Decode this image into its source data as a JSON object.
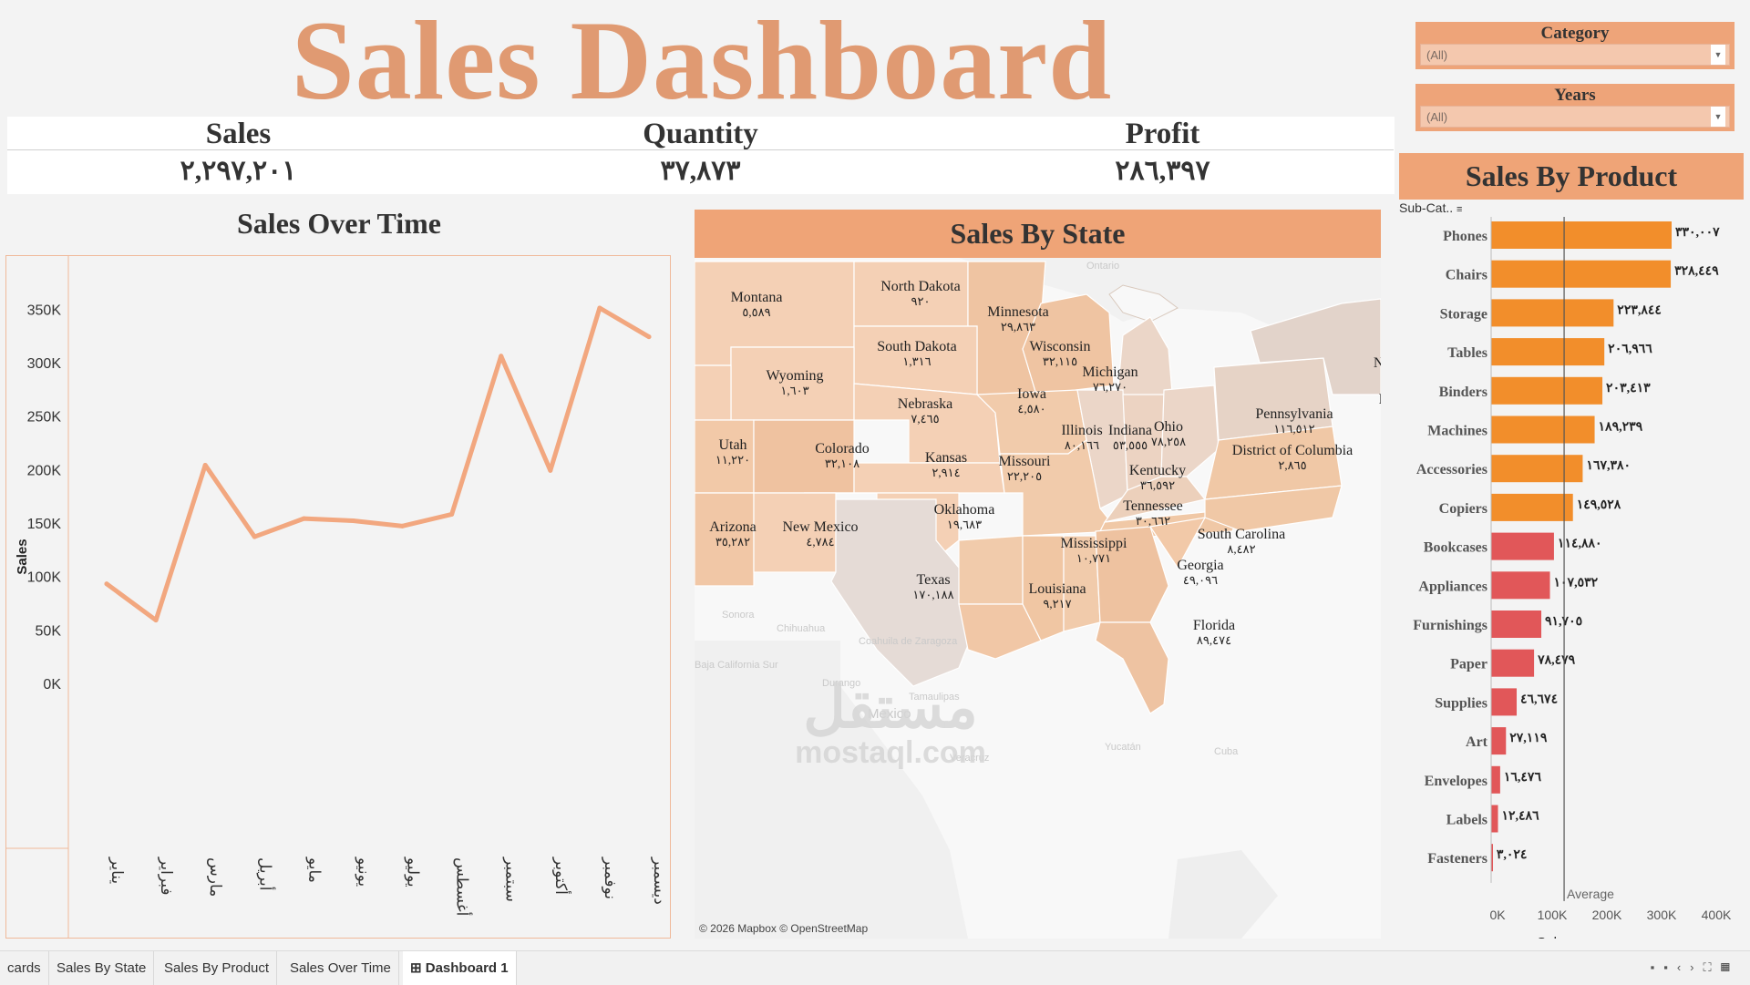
{
  "title": "Sales Dashboard",
  "kpis": [
    {
      "label": "Sales",
      "value": "٢,٢٩٧,٢٠١"
    },
    {
      "label": "Quantity",
      "value": "٣٧,٨٧٣"
    },
    {
      "label": "Profit",
      "value": "٢٨٦,٣٩٧"
    }
  ],
  "filters": {
    "category": {
      "label": "Category",
      "value": "(All)"
    },
    "years": {
      "label": "Years",
      "value": "(All)"
    }
  },
  "sales_over_time": {
    "title": "Sales Over Time",
    "ylabel": "Sales"
  },
  "sales_by_state": {
    "title": "Sales By State",
    "attribution": "© 2026 Mapbox © OpenStreetMap",
    "states": [
      {
        "name": "Montana",
        "value": "٥,٥٨٩"
      },
      {
        "name": "North Dakota",
        "value": "٩٢٠"
      },
      {
        "name": "Minnesota",
        "value": "٢٩,٨٦٣"
      },
      {
        "name": "South Dakota",
        "value": "١,٣١٦"
      },
      {
        "name": "Wyoming",
        "value": "١,٦٠٣"
      },
      {
        "name": "Wisconsin",
        "value": "٣٢,١١٥"
      },
      {
        "name": "Michigan",
        "value": "٧٦,٢٧٠"
      },
      {
        "name": "Nebraska",
        "value": "٧,٤٦٥"
      },
      {
        "name": "Iowa",
        "value": "٤,٥٨٠"
      },
      {
        "name": "Utah",
        "value": "١١,٢٢٠"
      },
      {
        "name": "Colorado",
        "value": "٣٢,١٠٨"
      },
      {
        "name": "Kansas",
        "value": "٢,٩١٤"
      },
      {
        "name": "Illinois",
        "value": "٨٠,١٦٦"
      },
      {
        "name": "Indiana",
        "value": "٥٣,٥٥٥"
      },
      {
        "name": "Ohio",
        "value": "٧٨,٢٥٨"
      },
      {
        "name": "Pennsylvania",
        "value": "١١٦,٥١٢"
      },
      {
        "name": "District of Columbia",
        "value": "٢,٨٦٥"
      },
      {
        "name": "Missouri",
        "value": "٢٢,٢٠٥"
      },
      {
        "name": "Kentucky",
        "value": "٣٦,٥٩٢"
      },
      {
        "name": "Oklahoma",
        "value": "١٩,٦٨٣"
      },
      {
        "name": "Tennessee",
        "value": "٣٠,٦٦٢"
      },
      {
        "name": "Arizona",
        "value": "٣٥,٢٨٢"
      },
      {
        "name": "New Mexico",
        "value": "٤,٧٨٤"
      },
      {
        "name": "South Carolina",
        "value": "٨,٤٨٢"
      },
      {
        "name": "Mississippi",
        "value": "١٠,٧٧١"
      },
      {
        "name": "Georgia",
        "value": "٤٩,٠٩٦"
      },
      {
        "name": "Texas",
        "value": "١٧٠,١٨٨"
      },
      {
        "name": "Louisiana",
        "value": "٩,٢١٧"
      },
      {
        "name": "Florida",
        "value": "٨٩,٤٧٤"
      },
      {
        "name": "New",
        "value": ""
      },
      {
        "name": "Rh",
        "value": ""
      }
    ],
    "background_labels": [
      "Ontario",
      "Sonora",
      "Chihuahua",
      "Coahuila de Zaragoza",
      "Baja California Sur",
      "Durango",
      "Tamaulipas",
      "Mexico",
      "Yucatán",
      "Cuba",
      "Veracruz"
    ]
  },
  "sales_by_product": {
    "title": "Sales By Product",
    "sub_label": "Sub-Cat..",
    "avg_label": "Average",
    "xlabel": "Sales"
  },
  "watermark": {
    "ar": "مستقل",
    "en": "mostaql.com"
  },
  "tabs": [
    "cards",
    "Sales By State",
    "Sales By Product",
    "Sales Over Time",
    "Dashboard 1"
  ],
  "colors": {
    "title": "#e09a72",
    "line": "#f2a77f",
    "bar_high": "#f28e2b",
    "bar_low": "#e15759",
    "header": "#efa477"
  },
  "chart_data": [
    {
      "type": "line",
      "title": "Sales Over Time",
      "x": [
        "يناير",
        "فبراير",
        "مارس",
        "أبريل",
        "مايو",
        "يونيو",
        "يوليو",
        "أغسطس",
        "سبتمبر",
        "أكتوبر",
        "نوفمبر",
        "ديسمبر"
      ],
      "values": [
        94000,
        60000,
        205000,
        138000,
        155000,
        153000,
        148000,
        159000,
        307000,
        200000,
        352000,
        325000
      ],
      "ylabel": "Sales",
      "ylim": [
        0,
        375000
      ],
      "yticks": [
        0,
        50000,
        100000,
        150000,
        200000,
        250000,
        300000,
        350000
      ],
      "ytick_labels": [
        "0K",
        "50K",
        "100K",
        "150K",
        "200K",
        "250K",
        "300K",
        "350K"
      ]
    },
    {
      "type": "bar",
      "orientation": "horizontal",
      "title": "Sales By Product",
      "categories": [
        "Phones",
        "Chairs",
        "Storage",
        "Tables",
        "Binders",
        "Machines",
        "Accessories",
        "Copiers",
        "Bookcases",
        "Appliances",
        "Furnishings",
        "Paper",
        "Supplies",
        "Art",
        "Envelopes",
        "Labels",
        "Fasteners"
      ],
      "values": [
        330007,
        328449,
        223844,
        206966,
        203413,
        189239,
        167380,
        149528,
        114880,
        107532,
        91705,
        78479,
        46674,
        27119,
        16476,
        12486,
        3024
      ],
      "value_labels": [
        "٣٣٠,٠٠٧",
        "٣٢٨,٤٤٩",
        "٢٢٣,٨٤٤",
        "٢٠٦,٩٦٦",
        "٢٠٣,٤١٣",
        "١٨٩,٢٣٩",
        "١٦٧,٣٨٠",
        "١٤٩,٥٢٨",
        "١١٤,٨٨٠",
        "١٠٧,٥٣٢",
        "٩١,٧٠٥",
        "٧٨,٤٧٩",
        "٤٦,٦٧٤",
        "٢٧,١١٩",
        "١٦,٤٧٦",
        "١٢,٤٨٦",
        "٣,٠٢٤"
      ],
      "average": 135100,
      "xlabel": "Sales",
      "xlim": [
        0,
        400000
      ],
      "xticks": [
        0,
        100000,
        200000,
        300000,
        400000
      ],
      "xtick_labels": [
        "0K",
        "100K",
        "200K",
        "300K",
        "400K"
      ]
    }
  ]
}
